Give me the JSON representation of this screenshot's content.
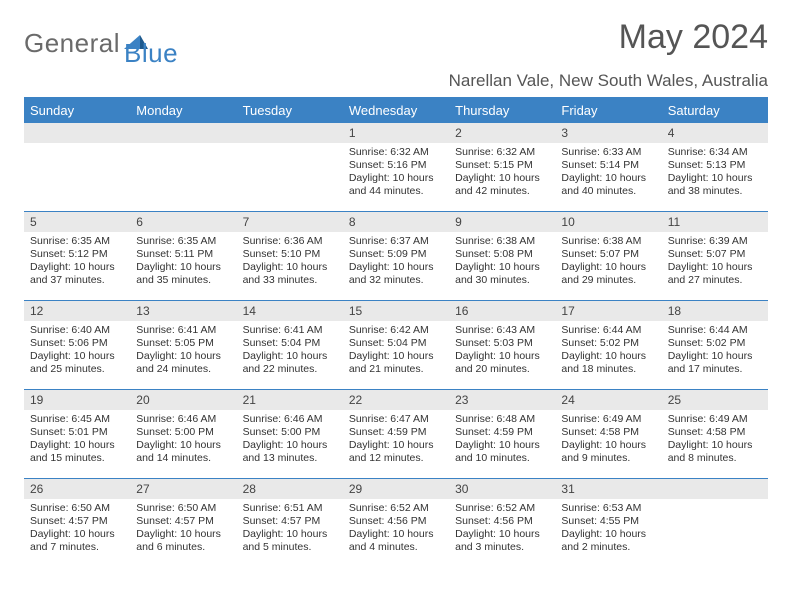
{
  "brand": {
    "word1": "General",
    "word2": "Blue"
  },
  "title": "May 2024",
  "location": "Narellan Vale, New South Wales, Australia",
  "colors": {
    "accent": "#3b82c4",
    "header_bg": "#3b82c4",
    "daynum_bg": "#e9e9e9",
    "text": "#333333",
    "title_text": "#555555",
    "page_bg": "#ffffff"
  },
  "dow": [
    "Sunday",
    "Monday",
    "Tuesday",
    "Wednesday",
    "Thursday",
    "Friday",
    "Saturday"
  ],
  "weeks": [
    [
      {
        "n": "",
        "sr": "",
        "ss": "",
        "dl": ""
      },
      {
        "n": "",
        "sr": "",
        "ss": "",
        "dl": ""
      },
      {
        "n": "",
        "sr": "",
        "ss": "",
        "dl": ""
      },
      {
        "n": "1",
        "sr": "6:32 AM",
        "ss": "5:16 PM",
        "dl": "10 hours and 44 minutes."
      },
      {
        "n": "2",
        "sr": "6:32 AM",
        "ss": "5:15 PM",
        "dl": "10 hours and 42 minutes."
      },
      {
        "n": "3",
        "sr": "6:33 AM",
        "ss": "5:14 PM",
        "dl": "10 hours and 40 minutes."
      },
      {
        "n": "4",
        "sr": "6:34 AM",
        "ss": "5:13 PM",
        "dl": "10 hours and 38 minutes."
      }
    ],
    [
      {
        "n": "5",
        "sr": "6:35 AM",
        "ss": "5:12 PM",
        "dl": "10 hours and 37 minutes."
      },
      {
        "n": "6",
        "sr": "6:35 AM",
        "ss": "5:11 PM",
        "dl": "10 hours and 35 minutes."
      },
      {
        "n": "7",
        "sr": "6:36 AM",
        "ss": "5:10 PM",
        "dl": "10 hours and 33 minutes."
      },
      {
        "n": "8",
        "sr": "6:37 AM",
        "ss": "5:09 PM",
        "dl": "10 hours and 32 minutes."
      },
      {
        "n": "9",
        "sr": "6:38 AM",
        "ss": "5:08 PM",
        "dl": "10 hours and 30 minutes."
      },
      {
        "n": "10",
        "sr": "6:38 AM",
        "ss": "5:07 PM",
        "dl": "10 hours and 29 minutes."
      },
      {
        "n": "11",
        "sr": "6:39 AM",
        "ss": "5:07 PM",
        "dl": "10 hours and 27 minutes."
      }
    ],
    [
      {
        "n": "12",
        "sr": "6:40 AM",
        "ss": "5:06 PM",
        "dl": "10 hours and 25 minutes."
      },
      {
        "n": "13",
        "sr": "6:41 AM",
        "ss": "5:05 PM",
        "dl": "10 hours and 24 minutes."
      },
      {
        "n": "14",
        "sr": "6:41 AM",
        "ss": "5:04 PM",
        "dl": "10 hours and 22 minutes."
      },
      {
        "n": "15",
        "sr": "6:42 AM",
        "ss": "5:04 PM",
        "dl": "10 hours and 21 minutes."
      },
      {
        "n": "16",
        "sr": "6:43 AM",
        "ss": "5:03 PM",
        "dl": "10 hours and 20 minutes."
      },
      {
        "n": "17",
        "sr": "6:44 AM",
        "ss": "5:02 PM",
        "dl": "10 hours and 18 minutes."
      },
      {
        "n": "18",
        "sr": "6:44 AM",
        "ss": "5:02 PM",
        "dl": "10 hours and 17 minutes."
      }
    ],
    [
      {
        "n": "19",
        "sr": "6:45 AM",
        "ss": "5:01 PM",
        "dl": "10 hours and 15 minutes."
      },
      {
        "n": "20",
        "sr": "6:46 AM",
        "ss": "5:00 PM",
        "dl": "10 hours and 14 minutes."
      },
      {
        "n": "21",
        "sr": "6:46 AM",
        "ss": "5:00 PM",
        "dl": "10 hours and 13 minutes."
      },
      {
        "n": "22",
        "sr": "6:47 AM",
        "ss": "4:59 PM",
        "dl": "10 hours and 12 minutes."
      },
      {
        "n": "23",
        "sr": "6:48 AM",
        "ss": "4:59 PM",
        "dl": "10 hours and 10 minutes."
      },
      {
        "n": "24",
        "sr": "6:49 AM",
        "ss": "4:58 PM",
        "dl": "10 hours and 9 minutes."
      },
      {
        "n": "25",
        "sr": "6:49 AM",
        "ss": "4:58 PM",
        "dl": "10 hours and 8 minutes."
      }
    ],
    [
      {
        "n": "26",
        "sr": "6:50 AM",
        "ss": "4:57 PM",
        "dl": "10 hours and 7 minutes."
      },
      {
        "n": "27",
        "sr": "6:50 AM",
        "ss": "4:57 PM",
        "dl": "10 hours and 6 minutes."
      },
      {
        "n": "28",
        "sr": "6:51 AM",
        "ss": "4:57 PM",
        "dl": "10 hours and 5 minutes."
      },
      {
        "n": "29",
        "sr": "6:52 AM",
        "ss": "4:56 PM",
        "dl": "10 hours and 4 minutes."
      },
      {
        "n": "30",
        "sr": "6:52 AM",
        "ss": "4:56 PM",
        "dl": "10 hours and 3 minutes."
      },
      {
        "n": "31",
        "sr": "6:53 AM",
        "ss": "4:55 PM",
        "dl": "10 hours and 2 minutes."
      },
      {
        "n": "",
        "sr": "",
        "ss": "",
        "dl": ""
      }
    ]
  ],
  "labels": {
    "sunrise": "Sunrise:",
    "sunset": "Sunset:",
    "daylight": "Daylight:"
  }
}
